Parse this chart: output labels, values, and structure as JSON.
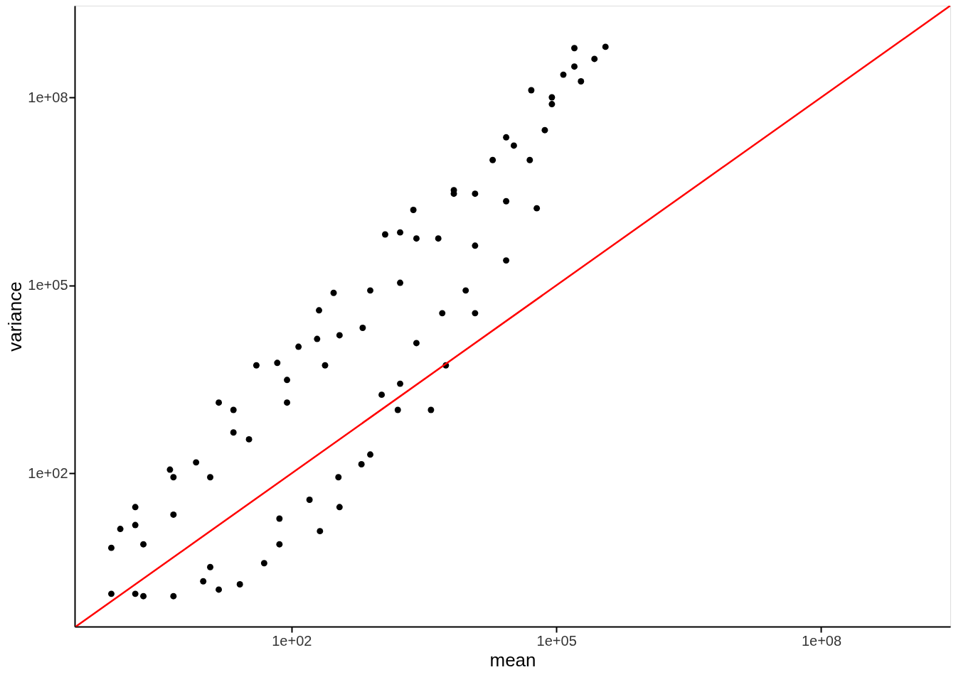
{
  "chart_data": {
    "type": "scatter",
    "xlabel": "mean",
    "ylabel": "variance",
    "log": "xy",
    "grid": false,
    "marker": "circle",
    "xlim": [
      0.35,
      2900000000.0
    ],
    "ylim": [
      0.36,
      2900000000.0
    ],
    "xticks": [
      {
        "value": 100,
        "label": "1e+02"
      },
      {
        "value": 100000,
        "label": "1e+05"
      },
      {
        "value": 100000000,
        "label": "1e+08"
      }
    ],
    "yticks": [
      {
        "value": 100,
        "label": "1e+02"
      },
      {
        "value": 100000,
        "label": "1e+05"
      },
      {
        "value": 100000000,
        "label": "1e+08"
      }
    ],
    "series": [
      {
        "color": "#000000",
        "x": [
          0.91,
          0.91,
          1.15,
          2.1,
          4.6,
          1.7,
          4.6,
          4.2,
          15,
          22,
          40,
          69,
          120,
          195,
          300,
          205,
          1150,
          1700,
          2400,
          6900,
          27000,
          52000,
          160000,
          360000,
          270000,
          190000,
          120000,
          89000,
          74000,
          50000,
          27000,
          12000,
          9400,
          5100,
          2600,
          1700,
          1600,
          1050,
          620,
          340,
          160,
          210,
          73,
          49,
          26,
          15,
          10,
          2.1,
          4.6,
          12,
          33,
          89,
          240,
          640,
          1700,
          4600,
          12000,
          33000,
          89000,
          160000,
          1.7,
          8.3,
          22,
          89,
          350,
          780,
          2600,
          6900,
          19000,
          1.7,
          12,
          73,
          350,
          780,
          3800,
          5600,
          12000,
          27000,
          60000
        ],
        "values": [
          1.2,
          6.5,
          13,
          1.1,
          1.1,
          29,
          87,
          115,
          1350,
          1030,
          5300,
          5800,
          10500,
          14000,
          76000,
          40000,
          650000,
          700000,
          1600000,
          2900000,
          23000000,
          130000000,
          610000000,
          640000000,
          410000000,
          180000000,
          230000000,
          78000000,
          30000000,
          10000000,
          2200000,
          430000,
          83000,
          36000,
          12000,
          2700,
          1030,
          1800,
          140,
          87,
          38,
          12,
          19,
          3.7,
          1.7,
          1.4,
          1.9,
          7.4,
          22,
          87,
          350,
          1350,
          5300,
          21000,
          110000,
          560000,
          2900000,
          17000000,
          100000000,
          310000000,
          15,
          150,
          450,
          3100,
          16000,
          83000,
          560000,
          3300000,
          10000000,
          1.2,
          3.2,
          7.4,
          29,
          200,
          1030,
          5300,
          36000,
          250000,
          1700000
        ]
      },
      {
        "type": "line",
        "color": "#ff0000",
        "marker": "none",
        "line_style": "solid",
        "x": [
          0.36,
          2900000000.0
        ],
        "values": [
          0.36,
          2900000000.0
        ]
      }
    ]
  }
}
